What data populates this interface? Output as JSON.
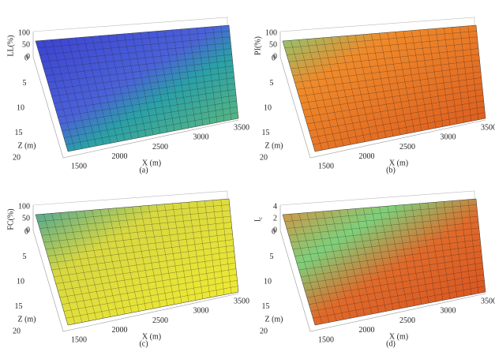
{
  "panels": [
    {
      "v_label": "LL(%)",
      "v_ticks": [
        "100",
        "50",
        "0"
      ],
      "z_label": "Z (m)",
      "z_ticks": [
        "0",
        "5",
        "10",
        "15",
        "20"
      ],
      "x_label": "X (m)",
      "x_ticks": [
        "1500",
        "2000",
        "2500",
        "3000",
        "3500"
      ],
      "caption": "(a)"
    },
    {
      "v_label": "PI(%)",
      "v_ticks": [
        "100",
        "50",
        "0"
      ],
      "z_label": "Z (m)",
      "z_ticks": [
        "0",
        "5",
        "10",
        "15",
        "20"
      ],
      "x_label": "X (m)",
      "x_ticks": [
        "1500",
        "2000",
        "2500",
        "3000",
        "3500"
      ],
      "caption": "(b)"
    },
    {
      "v_label": "FC(%)",
      "v_ticks": [
        "100",
        "50",
        "0"
      ],
      "z_label": "Z (m)",
      "z_ticks": [
        "0",
        "5",
        "10",
        "15",
        "20"
      ],
      "x_label": "X (m)",
      "x_ticks": [
        "1500",
        "2000",
        "2500",
        "3000",
        "3500"
      ],
      "caption": "(c)"
    },
    {
      "v_label": "I",
      "v_label_sub": "c",
      "v_ticks": [
        "4",
        "2",
        "0"
      ],
      "z_label": "Z (m)",
      "z_ticks": [
        "0",
        "5",
        "10",
        "15",
        "20"
      ],
      "x_label": "X (m)",
      "x_ticks": [
        "1500",
        "2000",
        "2500",
        "3000",
        "3500"
      ],
      "caption": "(d)"
    }
  ]
}
